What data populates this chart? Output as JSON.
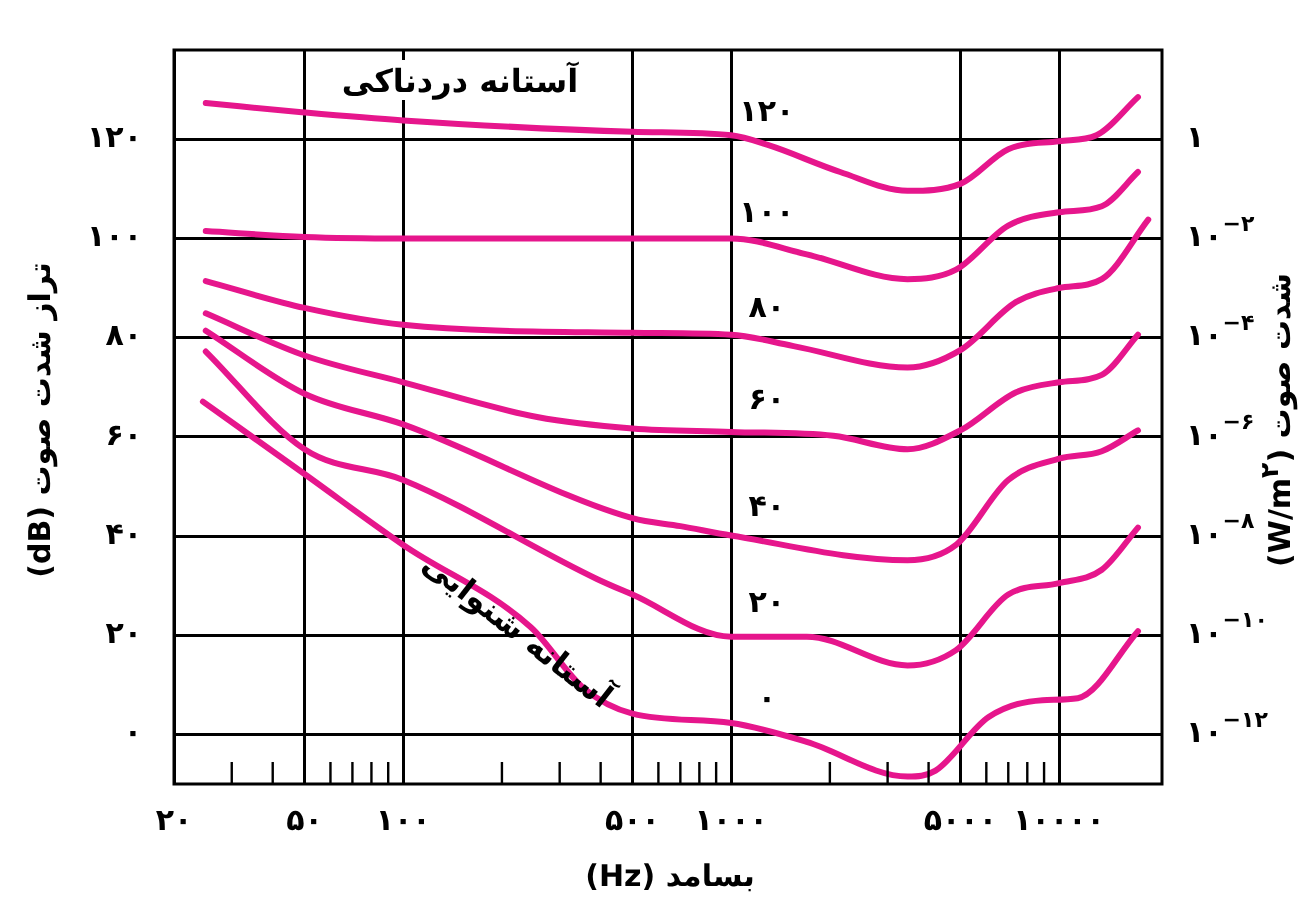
{
  "chart_data": {
    "type": "line",
    "xlabel": "بسامد (Hz)",
    "ylabel": "تراز شدت صوت (dB)",
    "y2label": "شدت صوت (W/m$^{۲}$)",
    "annotations": [
      "آستانه دردناکی",
      "آستانه شنوایی",
      "۱۰$^{−۱۲}$",
      "۱۰$^{−۱۰}$",
      "۱۰$^{−۸}$",
      "۱۰$^{−۶}$",
      "۱۰$^{−۴}$",
      "۱۰$^{−۲}$",
      "۱"
    ],
    "log": "x",
    "grid": true,
    "marker": "none",
    "xlim": [
      20,
      20600
    ],
    "ylim": [
      -10,
      138
    ],
    "xticks": [
      {
        "value": 20,
        "label": "۲۰"
      },
      {
        "value": 30,
        "label": null
      },
      {
        "value": 40,
        "label": null
      },
      {
        "value": 50,
        "label": "۵۰"
      },
      {
        "value": 60,
        "label": null
      },
      {
        "value": 70,
        "label": null
      },
      {
        "value": 80,
        "label": null
      },
      {
        "value": 90,
        "label": null
      },
      {
        "value": 100,
        "label": "۱۰۰"
      },
      {
        "value": 200,
        "label": null
      },
      {
        "value": 300,
        "label": null
      },
      {
        "value": 400,
        "label": null
      },
      {
        "value": 500,
        "label": "۵۰۰"
      },
      {
        "value": 600,
        "label": null
      },
      {
        "value": 700,
        "label": null
      },
      {
        "value": 800,
        "label": null
      },
      {
        "value": 900,
        "label": null
      },
      {
        "value": 1000,
        "label": "۱۰۰۰"
      },
      {
        "value": 2000,
        "label": null
      },
      {
        "value": 3000,
        "label": null
      },
      {
        "value": 4000,
        "label": null
      },
      {
        "value": 5000,
        "label": "۵۰۰۰"
      },
      {
        "value": 6000,
        "label": null
      },
      {
        "value": 7000,
        "label": null
      },
      {
        "value": 8000,
        "label": null
      },
      {
        "value": 9000,
        "label": null
      },
      {
        "value": 10000,
        "label": "۱۰۰۰۰"
      }
    ],
    "yticks": [
      {
        "value": 0,
        "label": "۰"
      },
      {
        "value": 20,
        "label": "۲۰"
      },
      {
        "value": 40,
        "label": "۴۰"
      },
      {
        "value": 60,
        "label": "۶۰"
      },
      {
        "value": 80,
        "label": "۸۰"
      },
      {
        "value": 100,
        "label": "۱۰۰"
      },
      {
        "value": 120,
        "label": "۱۲۰"
      }
    ],
    "series": [
      {
        "name": "۰",
        "color": "#e6168c",
        "x": [
          24.5,
          50,
          100,
          245,
          355,
          500,
          1000,
          1700,
          3450,
          4200,
          6100,
          8900,
          11400,
          17400
        ],
        "values": [
          67.1,
          52.5,
          38.2,
          21.6,
          9.3,
          4.2,
          2.3,
          -1.5,
          -8.5,
          -7.3,
          3.5,
          6.9,
          7.3,
          20.8
        ]
      },
      {
        "name": "۲۰",
        "color": "#e6168c",
        "x": [
          25,
          50,
          100,
          391,
          500,
          1000,
          1700,
          3450,
          4850,
          7000,
          10000,
          13500,
          17400
        ],
        "values": [
          77.2,
          57.5,
          51.3,
          31.3,
          28.2,
          19.7,
          19.7,
          13.9,
          17,
          28.2,
          30.5,
          33.2,
          41.7
        ]
      },
      {
        "name": "۴۰",
        "color": "#e6168c",
        "x": [
          25,
          50,
          100,
          500,
          700,
          1000,
          3450,
          4850,
          7000,
          10000,
          13500,
          17400
        ],
        "values": [
          81.4,
          68.7,
          62.5,
          43.6,
          42,
          40.1,
          35.1,
          38.2,
          51.3,
          55.6,
          57.1,
          61.3
        ]
      },
      {
        "name": "۶۰",
        "color": "#e6168c",
        "x": [
          25,
          50,
          100,
          256,
          500,
          1000,
          2050,
          3450,
          5000,
          7400,
          10000,
          13500,
          17400
        ],
        "values": [
          84.9,
          76.4,
          71,
          64,
          61.7,
          61,
          60.2,
          57.5,
          61.3,
          69,
          71,
          72.5,
          80.6
        ]
      },
      {
        "name": "۸۰",
        "color": "#e6168c",
        "x": [
          25,
          50,
          100,
          500,
          1000,
          1550,
          3450,
          5000,
          7400,
          10000,
          13500,
          18700
        ],
        "values": [
          91.4,
          86,
          82.6,
          81,
          80.6,
          78.3,
          74,
          77.5,
          87.2,
          90,
          91.8,
          103.8
        ]
      },
      {
        "name": "۱۰۰",
        "color": "#e6168c",
        "x": [
          25,
          50,
          100,
          500,
          1000,
          1700,
          3450,
          4850,
          7000,
          10000,
          13500,
          17400
        ],
        "values": [
          101.5,
          100.3,
          100,
          100,
          100,
          96.8,
          91.8,
          93.7,
          102.6,
          105.3,
          106.5,
          113.4
        ]
      },
      {
        "name": "۱۲۰",
        "color": "#e6168c",
        "x": [
          25,
          50,
          100,
          500,
          1000,
          1300,
          2150,
          3450,
          5000,
          7000,
          10000,
          13000,
          17400
        ],
        "values": [
          127.3,
          125.4,
          123.8,
          121.5,
          120.8,
          118.8,
          113.4,
          109.6,
          111,
          118,
          119.6,
          120.8,
          128.5
        ]
      }
    ]
  }
}
